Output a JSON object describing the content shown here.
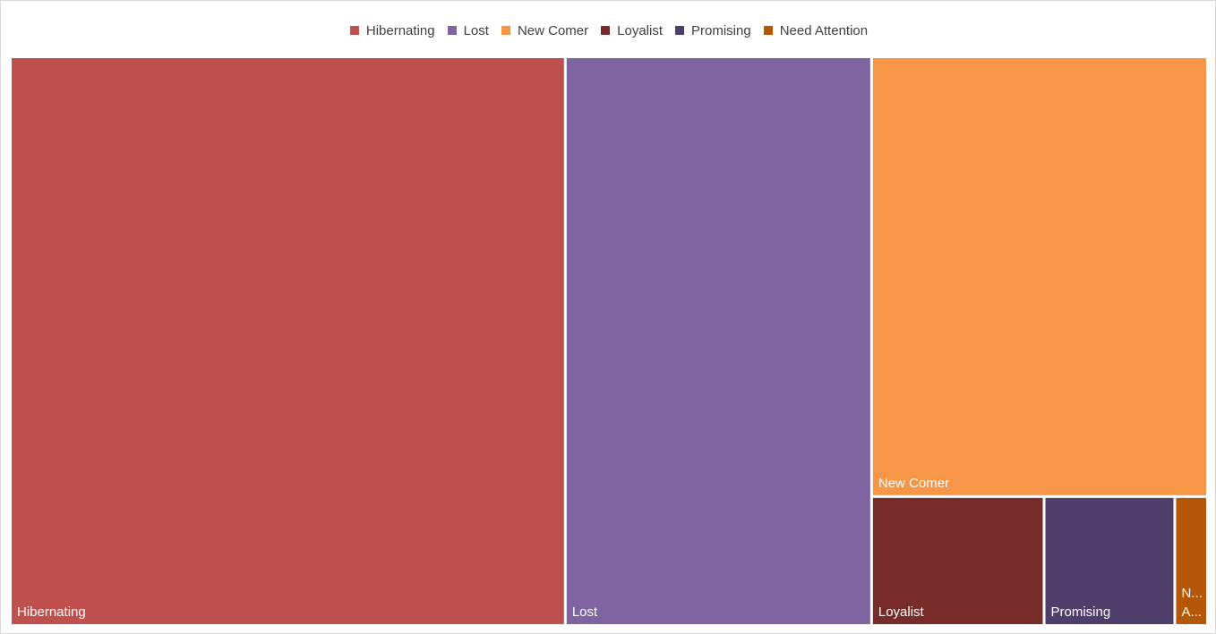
{
  "chart_data": {
    "type": "treemap",
    "title": "",
    "legend_position": "top",
    "segments": [
      {
        "name": "Hibernating",
        "label": "Hibernating",
        "label_lines": [
          "Hibernating"
        ],
        "value": 47,
        "color": "#C0504D"
      },
      {
        "name": "Lost",
        "label": "Lost",
        "label_lines": [
          "Lost"
        ],
        "value": 26,
        "color": "#8064A2"
      },
      {
        "name": "New Comer",
        "label": "New Comer",
        "label_lines": [
          "New Comer"
        ],
        "value": 22,
        "color": "#F79646"
      },
      {
        "name": "Loyalist",
        "label": "Loyalist",
        "label_lines": [
          "Loyalist"
        ],
        "value": 3.3,
        "color": "#772C2A"
      },
      {
        "name": "Promising",
        "label": "Promising",
        "label_lines": [
          "Promising"
        ],
        "value": 2.5,
        "color": "#4F3D6B"
      },
      {
        "name": "Need Attention",
        "label": "Need Attention",
        "label_lines": [
          "N...",
          "A..."
        ],
        "value": 0.6,
        "color": "#B65708"
      }
    ]
  }
}
